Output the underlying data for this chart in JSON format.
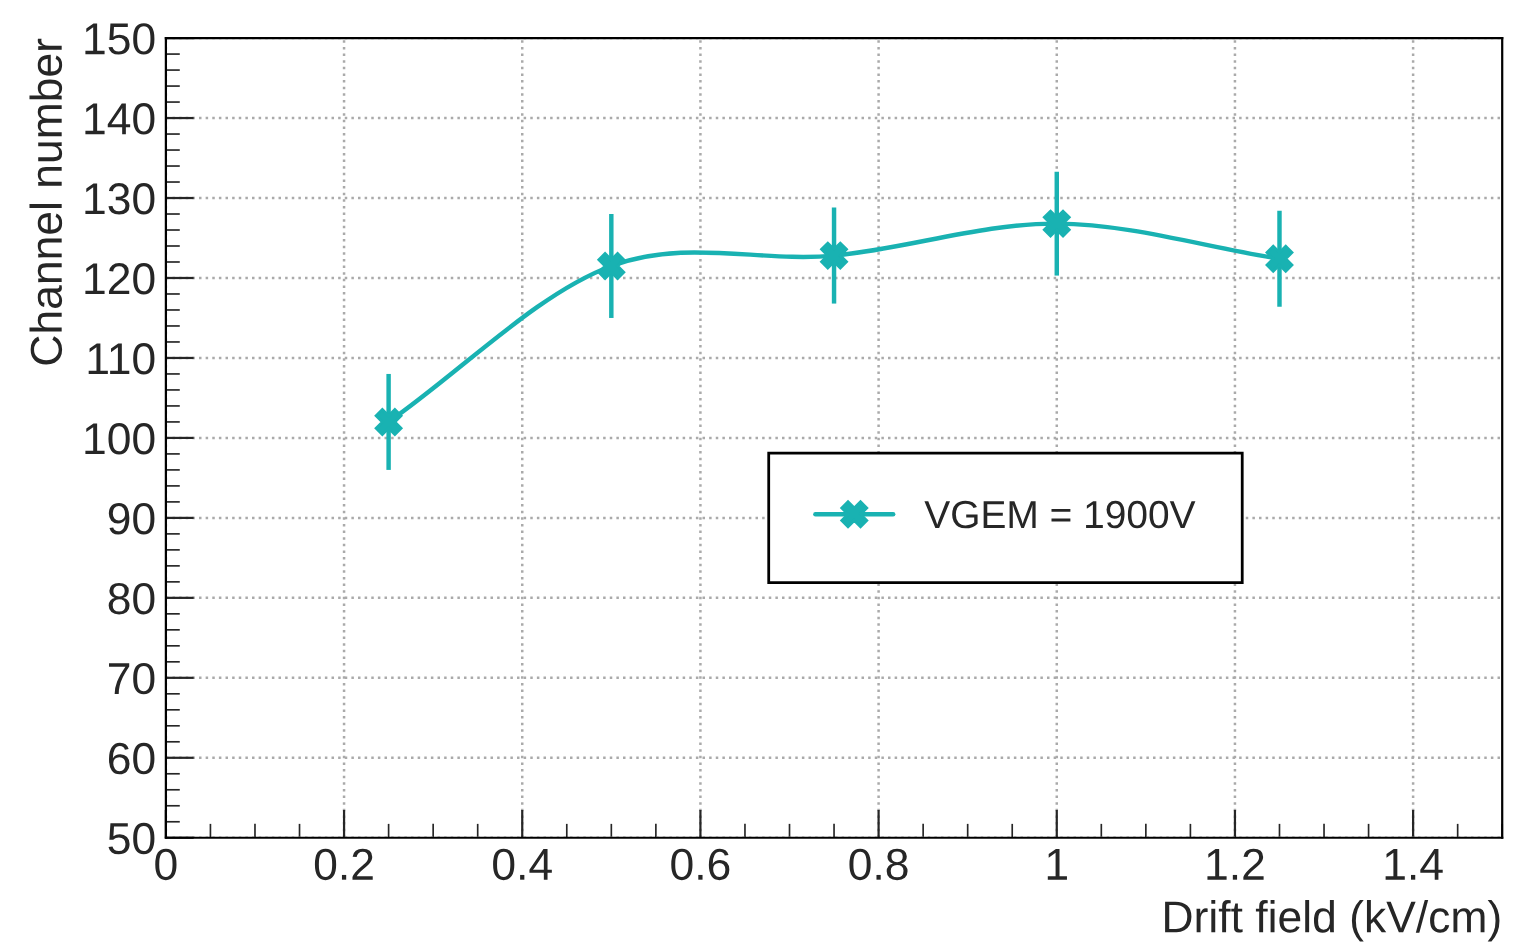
{
  "chart_data": {
    "type": "line",
    "xlabel": "Drift field (kV/cm)",
    "ylabel": "Channel number",
    "x": [
      0.25,
      0.5,
      0.75,
      1.0,
      1.25
    ],
    "series": [
      {
        "name": "VGEM = 1900V",
        "color": "#19b2b2",
        "values": [
          102,
          121.5,
          122.8,
          126.8,
          122.4
        ],
        "errors": [
          6,
          6.5,
          6,
          6.5,
          6
        ]
      }
    ],
    "xlim": [
      0,
      1.5
    ],
    "xticks": [
      0,
      0.2,
      0.4,
      0.6,
      0.8,
      1,
      1.2,
      1.4
    ],
    "ylim": [
      50,
      150
    ],
    "yticks": [
      50,
      60,
      70,
      80,
      90,
      100,
      110,
      120,
      130,
      140,
      150
    ],
    "grid": true,
    "legend": "right",
    "marker": "cross",
    "line_style": "solid"
  }
}
